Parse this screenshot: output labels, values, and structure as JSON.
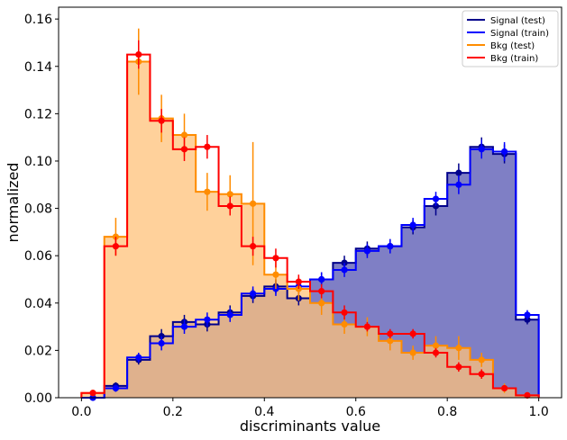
{
  "chart_data": {
    "type": "histogram",
    "title": "",
    "xlabel": "discriminants value",
    "ylabel": "normalized",
    "xlim": [
      -0.05,
      1.05
    ],
    "ylim": [
      0,
      0.165
    ],
    "xticks": [
      "0.0",
      "0.2",
      "0.4",
      "0.6",
      "0.8",
      "1.0"
    ],
    "xtick_values": [
      0,
      0.2,
      0.4,
      0.6,
      0.8,
      1.0
    ],
    "yticks": [
      "0.00",
      "0.02",
      "0.04",
      "0.06",
      "0.08",
      "0.10",
      "0.12",
      "0.14",
      "0.16"
    ],
    "ytick_values": [
      0,
      0.02,
      0.04,
      0.06,
      0.08,
      0.1,
      0.12,
      0.14,
      0.16
    ],
    "grid": false,
    "legend_position": "top-right",
    "bin_edges": [
      0.0,
      0.05,
      0.1,
      0.15,
      0.2,
      0.25,
      0.3,
      0.35,
      0.4,
      0.45,
      0.5,
      0.55,
      0.6,
      0.65,
      0.7,
      0.75,
      0.8,
      0.85,
      0.9,
      0.95,
      1.0
    ],
    "series": [
      {
        "name": "Signal (test)",
        "color": "#00008b",
        "fill": "#7f7fc5",
        "values": [
          0.0,
          0.005,
          0.016,
          0.026,
          0.032,
          0.031,
          0.036,
          0.043,
          0.047,
          0.042,
          0.05,
          0.057,
          0.063,
          0.064,
          0.072,
          0.081,
          0.095,
          0.106,
          0.103,
          0.033
        ],
        "errors": [
          0.0,
          0.0015,
          0.002,
          0.003,
          0.003,
          0.003,
          0.003,
          0.003,
          0.003,
          0.003,
          0.003,
          0.003,
          0.003,
          0.003,
          0.003,
          0.004,
          0.004,
          0.004,
          0.004,
          0.002
        ]
      },
      {
        "name": "Signal (train)",
        "color": "#0000ff",
        "values": [
          0.0,
          0.004,
          0.017,
          0.023,
          0.03,
          0.033,
          0.035,
          0.044,
          0.046,
          0.047,
          0.05,
          0.054,
          0.062,
          0.064,
          0.073,
          0.084,
          0.09,
          0.105,
          0.104,
          0.035
        ],
        "errors": [
          0.0,
          0.0015,
          0.002,
          0.003,
          0.003,
          0.003,
          0.003,
          0.003,
          0.003,
          0.003,
          0.003,
          0.003,
          0.003,
          0.003,
          0.003,
          0.003,
          0.004,
          0.004,
          0.004,
          0.002
        ]
      },
      {
        "name": "Bkg (test)",
        "color": "#ff8c00",
        "fill": "#ffc17a",
        "values": [
          0.002,
          0.068,
          0.142,
          0.118,
          0.111,
          0.087,
          0.086,
          0.082,
          0.052,
          0.046,
          0.04,
          0.031,
          0.03,
          0.024,
          0.019,
          0.022,
          0.021,
          0.016,
          0.004,
          0.001
        ],
        "errors": [
          0.001,
          0.008,
          0.014,
          0.01,
          0.009,
          0.008,
          0.008,
          0.026,
          0.006,
          0.005,
          0.005,
          0.004,
          0.004,
          0.004,
          0.003,
          0.004,
          0.005,
          0.003,
          0.002,
          0.001
        ]
      },
      {
        "name": "Bkg (train)",
        "color": "#ff0000",
        "values": [
          0.002,
          0.064,
          0.145,
          0.117,
          0.105,
          0.106,
          0.081,
          0.064,
          0.059,
          0.049,
          0.045,
          0.036,
          0.03,
          0.027,
          0.027,
          0.019,
          0.013,
          0.01,
          0.004,
          0.001
        ],
        "errors": [
          0.001,
          0.004,
          0.006,
          0.005,
          0.005,
          0.005,
          0.004,
          0.004,
          0.004,
          0.003,
          0.003,
          0.003,
          0.002,
          0.002,
          0.002,
          0.002,
          0.002,
          0.002,
          0.001,
          0.0005
        ]
      }
    ]
  }
}
